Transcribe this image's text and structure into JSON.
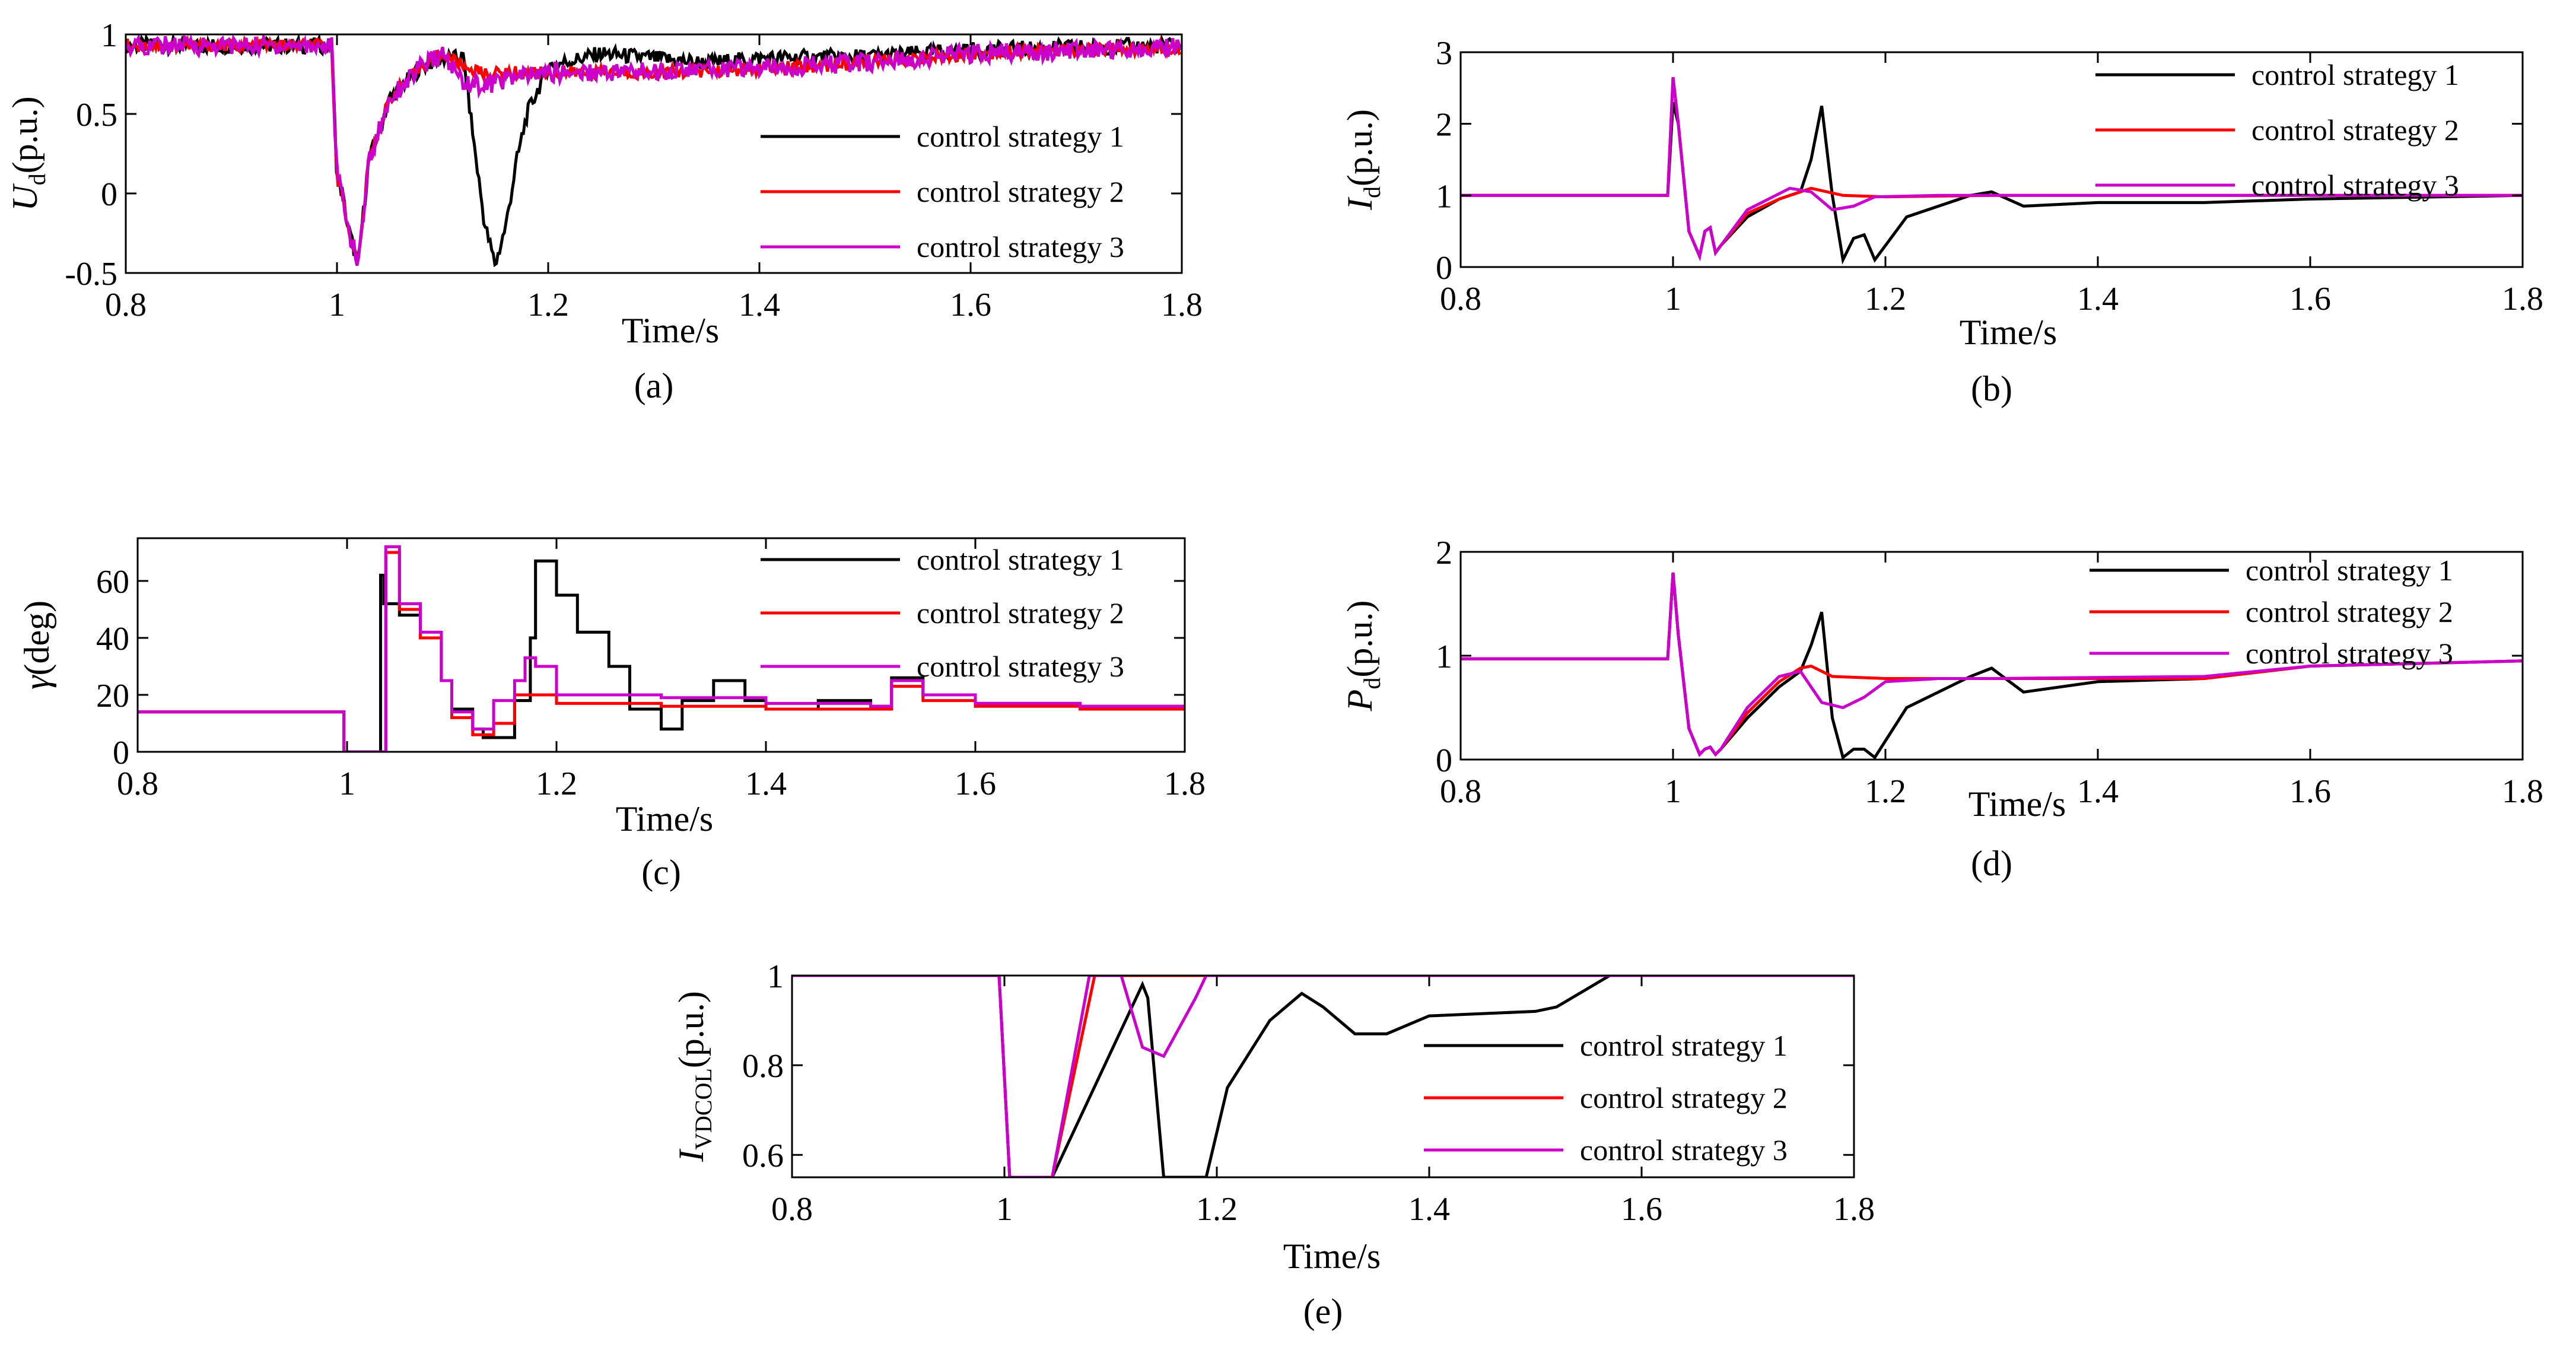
{
  "figure": {
    "colors": {
      "strategy1": "#000000",
      "strategy2": "#ff0000",
      "strategy3": "#cc00cc"
    }
  },
  "chart_data": [
    {
      "id": "a",
      "type": "line",
      "caption": "(a)",
      "ylabel_main": "U",
      "ylabel_sub": "d",
      "ylabel_unit": "(p.u.)",
      "xlabel": "Time/s",
      "xlim": [
        0.8,
        1.8
      ],
      "ylim": [
        -0.5,
        1
      ],
      "xticks": [
        "0.8",
        "1",
        "1.2",
        "1.4",
        "1.6",
        "1.8"
      ],
      "yticks": [
        "-0.5",
        "0",
        "0.5",
        "1"
      ],
      "legend": [
        "control strategy 1",
        "control strategy 2",
        "control strategy 3"
      ],
      "series": [
        {
          "name": "control strategy 1",
          "noise": 0.05,
          "x": [
            0.8,
            0.995,
            1.0,
            1.005,
            1.01,
            1.02,
            1.03,
            1.05,
            1.08,
            1.1,
            1.12,
            1.13,
            1.14,
            1.15,
            1.16,
            1.17,
            1.18,
            1.2,
            1.25,
            1.3,
            1.35,
            1.4,
            1.5,
            1.6,
            1.7,
            1.8
          ],
          "y": [
            0.93,
            0.93,
            0.1,
            0.0,
            -0.2,
            -0.45,
            0.2,
            0.6,
            0.8,
            0.85,
            0.85,
            0.3,
            -0.2,
            -0.45,
            -0.2,
            0.2,
            0.5,
            0.8,
            0.88,
            0.85,
            0.82,
            0.85,
            0.86,
            0.9,
            0.92,
            0.93
          ]
        },
        {
          "name": "control strategy 2",
          "noise": 0.04,
          "x": [
            0.8,
            0.995,
            1.0,
            1.005,
            1.01,
            1.02,
            1.03,
            1.05,
            1.08,
            1.1,
            1.12,
            1.14,
            1.17,
            1.2,
            1.3,
            1.4,
            1.5,
            1.6,
            1.7,
            1.8
          ],
          "y": [
            0.93,
            0.93,
            0.1,
            0.0,
            -0.2,
            -0.45,
            0.2,
            0.6,
            0.8,
            0.88,
            0.8,
            0.75,
            0.76,
            0.76,
            0.76,
            0.78,
            0.82,
            0.88,
            0.9,
            0.92
          ]
        },
        {
          "name": "control strategy 3",
          "noise": 0.06,
          "x": [
            0.8,
            0.995,
            1.0,
            1.005,
            1.01,
            1.02,
            1.03,
            1.05,
            1.08,
            1.1,
            1.12,
            1.14,
            1.16,
            1.2,
            1.3,
            1.4,
            1.5,
            1.6,
            1.7,
            1.8
          ],
          "y": [
            0.93,
            0.93,
            0.1,
            0.0,
            -0.2,
            -0.45,
            0.2,
            0.6,
            0.8,
            0.87,
            0.7,
            0.68,
            0.72,
            0.76,
            0.77,
            0.79,
            0.82,
            0.88,
            0.9,
            0.92
          ]
        }
      ]
    },
    {
      "id": "b",
      "type": "line",
      "caption": "(b)",
      "ylabel_main": "I",
      "ylabel_sub": "d",
      "ylabel_unit": "(p.u.)",
      "xlabel": "Time/s",
      "xlim": [
        0.8,
        1.8
      ],
      "ylim": [
        0,
        3
      ],
      "xticks": [
        "0.8",
        "1",
        "1.2",
        "1.4",
        "1.6",
        "1.8"
      ],
      "yticks": [
        "0",
        "1",
        "2",
        "3"
      ],
      "legend": [
        "control strategy 1",
        "control strategy 2",
        "control strategy 3"
      ],
      "series": [
        {
          "name": "control strategy 1",
          "x": [
            0.8,
            0.995,
            1.0,
            1.005,
            1.015,
            1.025,
            1.03,
            1.035,
            1.04,
            1.045,
            1.07,
            1.1,
            1.12,
            1.13,
            1.14,
            1.15,
            1.16,
            1.17,
            1.18,
            1.19,
            1.22,
            1.28,
            1.3,
            1.33,
            1.4,
            1.5,
            1.6,
            1.8
          ],
          "y": [
            1.0,
            1.0,
            2.3,
            2.0,
            0.5,
            0.15,
            0.5,
            0.55,
            0.2,
            0.3,
            0.7,
            0.95,
            1.05,
            1.5,
            2.25,
            1.0,
            0.1,
            0.4,
            0.45,
            0.1,
            0.7,
            1.0,
            1.05,
            0.85,
            0.9,
            0.9,
            0.95,
            1.0
          ]
        },
        {
          "name": "control strategy 2",
          "x": [
            0.8,
            0.995,
            1.0,
            1.005,
            1.015,
            1.025,
            1.03,
            1.035,
            1.04,
            1.045,
            1.07,
            1.1,
            1.13,
            1.16,
            1.2,
            1.3,
            1.5,
            1.8
          ],
          "y": [
            1.0,
            1.0,
            2.65,
            2.0,
            0.5,
            0.15,
            0.5,
            0.55,
            0.2,
            0.3,
            0.75,
            0.95,
            1.1,
            1.0,
            0.98,
            1.0,
            1.0,
            1.0
          ]
        },
        {
          "name": "control strategy 3",
          "x": [
            0.8,
            0.995,
            1.0,
            1.005,
            1.015,
            1.025,
            1.03,
            1.035,
            1.04,
            1.045,
            1.07,
            1.11,
            1.13,
            1.15,
            1.17,
            1.19,
            1.25,
            1.3,
            1.5,
            1.8
          ],
          "y": [
            1.0,
            1.0,
            2.65,
            2.0,
            0.5,
            0.15,
            0.5,
            0.55,
            0.2,
            0.3,
            0.8,
            1.1,
            1.05,
            0.8,
            0.85,
            0.98,
            1.0,
            1.0,
            1.0,
            1.0
          ]
        }
      ]
    },
    {
      "id": "c",
      "type": "line",
      "caption": "(c)",
      "ylabel_main": "γ",
      "ylabel_sub": "",
      "ylabel_unit": "(deg)",
      "xlabel": "Time/s",
      "xlim": [
        0.8,
        1.8
      ],
      "ylim": [
        0,
        75
      ],
      "xticks": [
        "0.8",
        "1",
        "1.2",
        "1.4",
        "1.6",
        "1.8"
      ],
      "yticks": [
        "0",
        "20",
        "40",
        "60"
      ],
      "legend": [
        "control strategy 1",
        "control strategy 2",
        "control strategy 3"
      ],
      "series": [
        {
          "name": "control strategy 1",
          "stairs": true,
          "x": [
            0.8,
            0.995,
            0.997,
            1.03,
            1.032,
            1.035,
            1.05,
            1.07,
            1.09,
            1.1,
            1.12,
            1.13,
            1.16,
            1.175,
            1.18,
            1.2,
            1.22,
            1.25,
            1.27,
            1.3,
            1.32,
            1.35,
            1.38,
            1.4,
            1.45,
            1.5,
            1.52,
            1.55,
            1.6,
            1.7,
            1.8
          ],
          "y": [
            14,
            14,
            0,
            0,
            62,
            52,
            48,
            40,
            25,
            15,
            8,
            5,
            18,
            40,
            67,
            55,
            42,
            30,
            15,
            8,
            18,
            25,
            18,
            15,
            18,
            16,
            26,
            20,
            17,
            16,
            16
          ]
        },
        {
          "name": "control strategy 2",
          "stairs": true,
          "x": [
            0.8,
            0.995,
            0.997,
            1.035,
            1.037,
            1.05,
            1.07,
            1.09,
            1.1,
            1.12,
            1.14,
            1.16,
            1.2,
            1.3,
            1.4,
            1.5,
            1.52,
            1.55,
            1.6,
            1.7,
            1.8
          ],
          "y": [
            14,
            14,
            0,
            0,
            70,
            50,
            40,
            25,
            12,
            6,
            10,
            20,
            17,
            16,
            15,
            15,
            23,
            18,
            16,
            15,
            16
          ]
        },
        {
          "name": "control strategy 3",
          "stairs": true,
          "x": [
            0.8,
            0.995,
            0.997,
            1.035,
            1.037,
            1.05,
            1.07,
            1.09,
            1.1,
            1.12,
            1.14,
            1.16,
            1.17,
            1.18,
            1.2,
            1.3,
            1.4,
            1.5,
            1.52,
            1.55,
            1.6,
            1.7,
            1.8
          ],
          "y": [
            14,
            14,
            0,
            0,
            72,
            52,
            42,
            25,
            14,
            8,
            18,
            25,
            33,
            30,
            20,
            19,
            17,
            16,
            25,
            20,
            17,
            16,
            16
          ]
        }
      ]
    },
    {
      "id": "d",
      "type": "line",
      "caption": "(d)",
      "ylabel_main": "P",
      "ylabel_sub": "d",
      "ylabel_unit": "(p.u.)",
      "xlabel": "Time/s",
      "xlim": [
        0.8,
        1.8
      ],
      "ylim": [
        0,
        2
      ],
      "xticks": [
        "0.8",
        "1",
        "1.2",
        "1.4",
        "1.6",
        "1.8"
      ],
      "yticks": [
        "0",
        "1",
        "2"
      ],
      "legend": [
        "control strategy 1",
        "control strategy 2",
        "control strategy 3"
      ],
      "series": [
        {
          "name": "control strategy 1",
          "x": [
            0.8,
            0.995,
            1.0,
            1.005,
            1.015,
            1.025,
            1.03,
            1.035,
            1.04,
            1.045,
            1.07,
            1.1,
            1.12,
            1.13,
            1.14,
            1.15,
            1.16,
            1.17,
            1.18,
            1.19,
            1.22,
            1.28,
            1.3,
            1.33,
            1.4,
            1.5,
            1.6,
            1.8
          ],
          "y": [
            0.97,
            0.97,
            1.8,
            1.2,
            0.3,
            0.05,
            0.1,
            0.12,
            0.05,
            0.1,
            0.4,
            0.7,
            0.85,
            1.1,
            1.42,
            0.4,
            0.02,
            0.1,
            0.1,
            0.02,
            0.5,
            0.8,
            0.88,
            0.65,
            0.75,
            0.78,
            0.9,
            0.95
          ]
        },
        {
          "name": "control strategy 2",
          "x": [
            0.8,
            0.995,
            1.0,
            1.005,
            1.015,
            1.025,
            1.03,
            1.035,
            1.04,
            1.045,
            1.07,
            1.1,
            1.12,
            1.13,
            1.15,
            1.2,
            1.3,
            1.5,
            1.6,
            1.8
          ],
          "y": [
            0.97,
            0.97,
            1.8,
            1.2,
            0.3,
            0.05,
            0.1,
            0.12,
            0.05,
            0.1,
            0.45,
            0.75,
            0.88,
            0.9,
            0.8,
            0.78,
            0.78,
            0.78,
            0.9,
            0.95
          ]
        },
        {
          "name": "control strategy 3",
          "x": [
            0.8,
            0.995,
            1.0,
            1.005,
            1.015,
            1.025,
            1.03,
            1.035,
            1.04,
            1.045,
            1.07,
            1.1,
            1.12,
            1.14,
            1.16,
            1.18,
            1.2,
            1.25,
            1.3,
            1.5,
            1.6,
            1.8
          ],
          "y": [
            0.97,
            0.97,
            1.8,
            1.2,
            0.3,
            0.05,
            0.1,
            0.12,
            0.05,
            0.1,
            0.5,
            0.8,
            0.85,
            0.55,
            0.5,
            0.6,
            0.75,
            0.78,
            0.78,
            0.8,
            0.9,
            0.95
          ]
        }
      ]
    },
    {
      "id": "e",
      "type": "line",
      "caption": "(e)",
      "ylabel_main": "I",
      "ylabel_sub": "VDCOL",
      "ylabel_unit": "(p.u.)",
      "xlabel": "Time/s",
      "xlim": [
        0.8,
        1.8
      ],
      "ylim": [
        0.55,
        1
      ],
      "xticks": [
        "0.8",
        "1",
        "1.2",
        "1.4",
        "1.6",
        "1.8"
      ],
      "yticks": [
        "0.6",
        "0.8",
        "1"
      ],
      "legend": [
        "control strategy 1",
        "control strategy 2",
        "control strategy 3"
      ],
      "series": [
        {
          "name": "control strategy 1",
          "x": [
            0.8,
            0.995,
            1.005,
            1.045,
            1.13,
            1.135,
            1.15,
            1.19,
            1.21,
            1.25,
            1.28,
            1.3,
            1.33,
            1.36,
            1.4,
            1.5,
            1.52,
            1.57,
            1.8
          ],
          "y": [
            1.0,
            1.0,
            0.55,
            0.55,
            0.98,
            0.95,
            0.55,
            0.55,
            0.75,
            0.9,
            0.96,
            0.93,
            0.87,
            0.87,
            0.91,
            0.92,
            0.93,
            1.0,
            1.0
          ]
        },
        {
          "name": "control strategy 2",
          "x": [
            0.8,
            0.995,
            1.005,
            1.045,
            1.085,
            1.8
          ],
          "y": [
            1.0,
            1.0,
            0.55,
            0.55,
            1.0,
            1.0
          ]
        },
        {
          "name": "control strategy 3",
          "x": [
            0.8,
            0.995,
            1.005,
            1.045,
            1.08,
            1.11,
            1.13,
            1.15,
            1.18,
            1.19,
            1.8
          ],
          "y": [
            1.0,
            1.0,
            0.55,
            0.55,
            1.0,
            1.0,
            0.84,
            0.82,
            0.95,
            1.0,
            1.0
          ]
        }
      ]
    }
  ]
}
